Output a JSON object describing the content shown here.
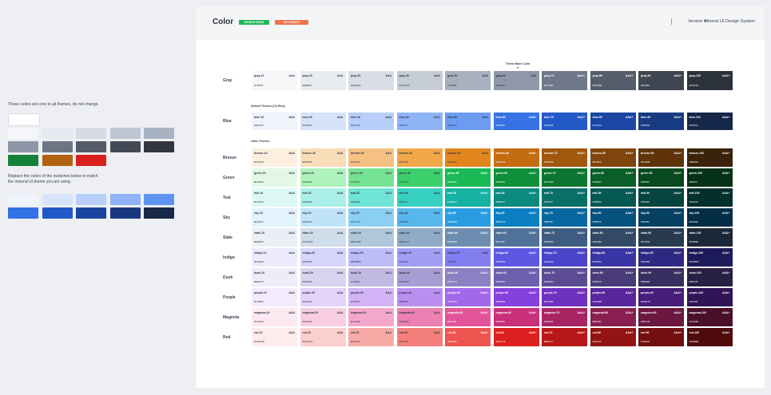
{
  "left": {
    "core_note": "These colors are core to all themes, do not change.",
    "replace_note_1": "Replace the colors of the swatches below to match",
    "replace_note_2": "the mineral UI theme you are using.",
    "core_swatches": [
      [
        "#ffffff"
      ],
      [
        "#f4f6f9",
        "#e6eaf0",
        "#d6dbe4",
        "#bec6d3",
        "#a7b2c2"
      ],
      [
        "#8c96a6",
        "#6d7585",
        "#545b68",
        "#444a55",
        "#313640"
      ],
      [
        "#148238",
        "#b2610f",
        "#da1f1f"
      ]
    ],
    "theme_swatches": [
      [
        "#eef3fc",
        "#d6e3fa",
        "#b7cffa",
        "#8eb4f7",
        "#5e93f0"
      ],
      [
        "#3271e6",
        "#2257c7",
        "#1a43a0",
        "#183780",
        "#172848"
      ]
    ]
  },
  "header": {
    "title": "Color",
    "badge_done": "DESIGN DONE",
    "badge_ready": "DEV READY",
    "version": "Version 4",
    "system": "Mineral UI Design System"
  },
  "theme_base_label": "Theme Base Color",
  "sections": {
    "default": "Default Themes (CA Blue)",
    "other": "Other Themes"
  },
  "families": [
    {
      "name": "Gray",
      "prefix": "gray",
      "colors": [
        "#f5f6f8",
        "#e8ebf0",
        "#d9dee6",
        "#c5ccd6",
        "#a7b0bf",
        "#8e98a8",
        "#6f7888",
        "#555d6b",
        "#3f4652",
        "#2c323c"
      ],
      "hex": [
        "#F5F6F8",
        "#E8EBF0",
        "#D9DEE6",
        "#C5CCD6",
        "#A7B0BF",
        "#8E98A8",
        "#6F7888",
        "#555D6B",
        "#3F4652",
        "#2C323C"
      ]
    },
    {
      "name": "Blue",
      "prefix": "blue",
      "colors": [
        "#eef3fc",
        "#d6e3fa",
        "#b7cffa",
        "#8eb4f7",
        "#6b9cf2",
        "#3672e4",
        "#2459c8",
        "#1c46a4",
        "#183a83",
        "#16284a"
      ],
      "hex": [
        "#EEF3FC",
        "#D6E3FA",
        "#B7CFFA",
        "#8EB4F7",
        "#6B9CF2",
        "#3672E4",
        "#2459C8",
        "#1C46A4",
        "#183A83",
        "#16284A"
      ]
    },
    {
      "name": "Bronze",
      "prefix": "bronze",
      "colors": [
        "#fcefe0",
        "#f9dcb8",
        "#f5c183",
        "#f0a748",
        "#e1861d",
        "#c36c12",
        "#a2570e",
        "#80450c",
        "#5f340b",
        "#3b220a"
      ],
      "hex": [
        "#FCEFE0",
        "#F9DCB8",
        "#F5C183",
        "#F0A748",
        "#E1861D",
        "#C36C12",
        "#A2570E",
        "#80450C",
        "#5F340B",
        "#3B220A"
      ]
    },
    {
      "name": "Green",
      "prefix": "green",
      "colors": [
        "#e2f8e5",
        "#aef2bc",
        "#75e291",
        "#3ccf6c",
        "#1ab955",
        "#0f8f3a",
        "#0c7630",
        "#0a5e27",
        "#084920",
        "#053217"
      ],
      "hex": [
        "#E2F8E5",
        "#AEF2BC",
        "#75E291",
        "#3CCF6C",
        "#1AB955",
        "#0F8F3A",
        "#0C7630",
        "#0A5E27",
        "#084920",
        "#053217"
      ]
    },
    {
      "name": "Teal",
      "prefix": "teal",
      "colors": [
        "#dcf8f5",
        "#abefe8",
        "#6ee3d6",
        "#36d1c1",
        "#16b2a3",
        "#0b8a7f",
        "#087067",
        "#065952",
        "#05443f",
        "#032f2c"
      ],
      "hex": [
        "#DCF8F5",
        "#ABEFE8",
        "#6EE3D6",
        "#36D1C1",
        "#16B2A3",
        "#0B8A7F",
        "#087067",
        "#065952",
        "#05443F",
        "#032F2C"
      ]
    },
    {
      "name": "Sky",
      "prefix": "sky",
      "colors": [
        "#e3f3fc",
        "#bfe4f9",
        "#8ccff4",
        "#57b7ec",
        "#2a9de0",
        "#0b7fc2",
        "#08679f",
        "#06527f",
        "#054063",
        "#042d46"
      ],
      "hex": [
        "#E3F3FC",
        "#BFE4F9",
        "#8CCFF4",
        "#57B7EC",
        "#2A9DE0",
        "#0B7FC2",
        "#08679F",
        "#06527F",
        "#054063",
        "#042D46"
      ]
    },
    {
      "name": "Slate",
      "prefix": "slate",
      "colors": [
        "#e9eff5",
        "#cfdce9",
        "#b0c6db",
        "#8eaac6",
        "#6d8db0",
        "#50729a",
        "#3f5d80",
        "#324a66",
        "#273a50",
        "#1b2838"
      ],
      "hex": [
        "#E9EFF5",
        "#CFDCE9",
        "#B0C6DB",
        "#8EAAC6",
        "#6D8DB0",
        "#50729A",
        "#3F5D80",
        "#324A66",
        "#273A50",
        "#1B2838"
      ]
    },
    {
      "name": "Indigo",
      "prefix": "indigo",
      "colors": [
        "#ecebfd",
        "#d6d5fb",
        "#bdbbf8",
        "#a19ef5",
        "#827ef0",
        "#5d57e2",
        "#4a44c8",
        "#3a35a4",
        "#2d2982",
        "#1e1b5a"
      ],
      "hex": [
        "#ECEBFD",
        "#D6D5FB",
        "#BDBBF8",
        "#A19EF5",
        "#827EF0",
        "#5D57E2",
        "#4A44C8",
        "#3A35A4",
        "#2D2982",
        "#1E1B5A"
      ]
    },
    {
      "name": "Dusk",
      "prefix": "dusk",
      "colors": [
        "#eeecf7",
        "#d8d3ee",
        "#c1b9e2",
        "#a79cd4",
        "#8d7fc4",
        "#6e5fad",
        "#5b4c94",
        "#493c79",
        "#382e60",
        "#281f45"
      ],
      "hex": [
        "#EEECF7",
        "#D8D3EE",
        "#C1B9E2",
        "#A79CD4",
        "#8D7FC4",
        "#6E5FAD",
        "#5B4C94",
        "#493C79",
        "#382E60",
        "#281F45"
      ]
    },
    {
      "name": "Purple",
      "prefix": "purple",
      "colors": [
        "#f3ebfc",
        "#e4d2fa",
        "#d1b3f6",
        "#bb8ef1",
        "#a268ea",
        "#8640db",
        "#6f31bf",
        "#5a269d",
        "#461d7b",
        "#311456"
      ],
      "hex": [
        "#F3EBFC",
        "#E4D2FA",
        "#D1B3F6",
        "#BB8EF1",
        "#A268EA",
        "#8640DB",
        "#6F31BF",
        "#5A269D",
        "#461D7B",
        "#311456"
      ]
    },
    {
      "name": "Magenta",
      "prefix": "magenta",
      "colors": [
        "#fce9f2",
        "#f8cde1",
        "#f3a8cb",
        "#ec80b3",
        "#e25499",
        "#c8307a",
        "#a82564",
        "#891e51",
        "#6b173f",
        "#4a102b"
      ],
      "hex": [
        "#FCE9F2",
        "#F8CDE1",
        "#F3A8CB",
        "#EC80B3",
        "#E25499",
        "#C8307A",
        "#A82564",
        "#891E51",
        "#6B173F",
        "#4A102B"
      ]
    },
    {
      "name": "Red",
      "prefix": "red",
      "colors": [
        "#fdeceb",
        "#fbcfcd",
        "#f8aaa7",
        "#f47f7b",
        "#ee5550",
        "#dc1f1f",
        "#b81717",
        "#941313",
        "#720f0f",
        "#4f0b0b"
      ],
      "hex": [
        "#FDECEB",
        "#FBCFCD",
        "#F8AAA7",
        "#F47F7B",
        "#EE5550",
        "#DC1F1F",
        "#B81717",
        "#941313",
        "#720F0F",
        "#4F0B0B"
      ]
    }
  ],
  "steps": [
    "10",
    "20",
    "30",
    "40",
    "50",
    "60",
    "70",
    "80",
    "90",
    "100"
  ],
  "contrast_light": "AAA",
  "contrast_dark": "AAA+"
}
